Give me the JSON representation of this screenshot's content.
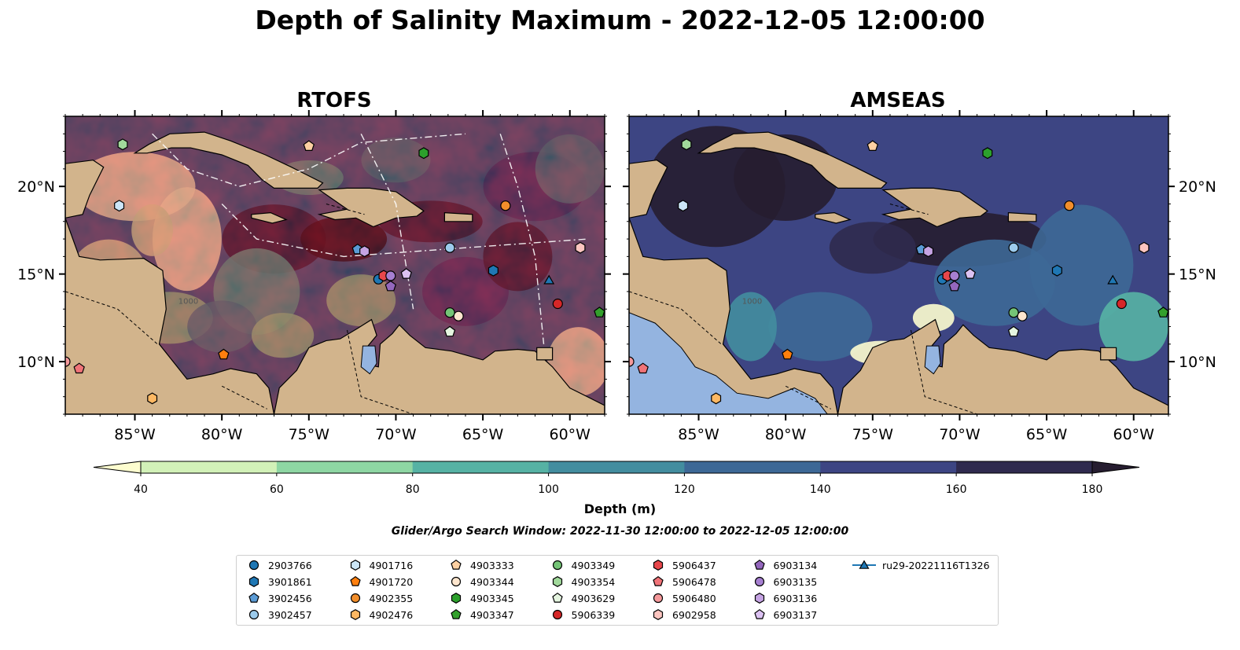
{
  "title": "Depth of Salinity Maximum - 2022-12-05 12:00:00",
  "panels": [
    {
      "title": "RTOFS",
      "model": "rtofs"
    },
    {
      "title": "AMSEAS",
      "model": "amseas"
    }
  ],
  "map": {
    "lon_range": [
      -89,
      -58
    ],
    "lat_range": [
      7,
      24
    ],
    "lon_ticks": [
      -85,
      -80,
      -75,
      -70,
      -65,
      -60
    ],
    "lon_tick_labels": [
      "85°W",
      "80°W",
      "75°W",
      "70°W",
      "65°W",
      "60°W"
    ],
    "lat_ticks": [
      10,
      15,
      20
    ],
    "lat_tick_labels": [
      "10°N",
      "15°N",
      "20°N"
    ],
    "contour_label": "1000",
    "colors": {
      "land": "#d2b48c",
      "ocean_fill": "#94b4e0",
      "coast": "#000000"
    }
  },
  "colorbar": {
    "label": "Depth (m)",
    "ticks": [
      40,
      60,
      80,
      100,
      120,
      140,
      160,
      180
    ],
    "colors": [
      "#fdfdcf",
      "#d2f1b8",
      "#8ed6a3",
      "#56b2a4",
      "#438d9f",
      "#3d6896",
      "#3d4583",
      "#2f2a4e",
      "#261d30"
    ],
    "extend": "both"
  },
  "search_window": "Glider/Argo Search Window: 2022-11-30 12:00:00 to 2022-12-05 12:00:00",
  "legend": [
    {
      "label": "2903766",
      "marker": "circle",
      "color": "#1f77b4"
    },
    {
      "label": "3901861",
      "marker": "hexagon",
      "color": "#1f77b4"
    },
    {
      "label": "3902456",
      "marker": "pentagon",
      "color": "#5b9bd5"
    },
    {
      "label": "3902457",
      "marker": "circle",
      "color": "#9ccbec"
    },
    {
      "label": "4901716",
      "marker": "hexagon",
      "color": "#cce6f7"
    },
    {
      "label": "4901720",
      "marker": "pentagon",
      "color": "#ff7f0e"
    },
    {
      "label": "4902355",
      "marker": "circle",
      "color": "#f28e2b"
    },
    {
      "label": "4902476",
      "marker": "hexagon",
      "color": "#fdb863"
    },
    {
      "label": "4903333",
      "marker": "pentagon",
      "color": "#fdd0a2"
    },
    {
      "label": "4903344",
      "marker": "circle",
      "color": "#fee6ce"
    },
    {
      "label": "4903345",
      "marker": "hexagon",
      "color": "#2ca02c"
    },
    {
      "label": "4903347",
      "marker": "pentagon",
      "color": "#33a02c"
    },
    {
      "label": "4903349",
      "marker": "circle",
      "color": "#74c476"
    },
    {
      "label": "4903354",
      "marker": "hexagon",
      "color": "#a1d99b"
    },
    {
      "label": "4903629",
      "marker": "pentagon",
      "color": "#e5f5e0"
    },
    {
      "label": "5906339",
      "marker": "circle",
      "color": "#d62728"
    },
    {
      "label": "5906437",
      "marker": "hexagon",
      "color": "#e8474b"
    },
    {
      "label": "5906478",
      "marker": "pentagon",
      "color": "#f07378"
    },
    {
      "label": "5906480",
      "marker": "circle",
      "color": "#f5999b"
    },
    {
      "label": "6902958",
      "marker": "hexagon",
      "color": "#fcc5c0"
    },
    {
      "label": "6903134",
      "marker": "pentagon",
      "color": "#9467bd"
    },
    {
      "label": "6903135",
      "marker": "circle",
      "color": "#a67fd1"
    },
    {
      "label": "6903136",
      "marker": "hexagon",
      "color": "#c5a3e3"
    },
    {
      "label": "6903137",
      "marker": "pentagon",
      "color": "#dcc2f2"
    },
    {
      "label": "ru29-20221116T1326",
      "marker": "triangle",
      "color": "#1f77b4",
      "line": true
    }
  ],
  "floats": [
    {
      "id": "2903766",
      "lon": -71.0,
      "lat": 14.7
    },
    {
      "id": "3901861",
      "lon": -64.4,
      "lat": 15.2
    },
    {
      "id": "3902456",
      "lon": -72.2,
      "lat": 16.4
    },
    {
      "id": "3902457",
      "lon": -66.9,
      "lat": 16.5
    },
    {
      "id": "4901716",
      "lon": -85.9,
      "lat": 18.9
    },
    {
      "id": "4901720",
      "lon": -79.9,
      "lat": 10.4
    },
    {
      "id": "4902355",
      "lon": -63.7,
      "lat": 18.9
    },
    {
      "id": "4902476",
      "lon": -84.0,
      "lat": 7.9
    },
    {
      "id": "4903333",
      "lon": -75.0,
      "lat": 22.3
    },
    {
      "id": "4903344",
      "lon": -66.4,
      "lat": 12.6
    },
    {
      "id": "4903345",
      "lon": -68.4,
      "lat": 21.9
    },
    {
      "id": "4903347",
      "lon": -58.3,
      "lat": 12.8
    },
    {
      "id": "4903349",
      "lon": -66.9,
      "lat": 12.8
    },
    {
      "id": "4903354",
      "lon": -85.7,
      "lat": 22.4
    },
    {
      "id": "4903629",
      "lon": -66.9,
      "lat": 11.7
    },
    {
      "id": "5906339",
      "lon": -60.7,
      "lat": 13.3
    },
    {
      "id": "5906437",
      "lon": -70.7,
      "lat": 14.9
    },
    {
      "id": "5906478",
      "lon": -88.2,
      "lat": 9.6
    },
    {
      "id": "5906480",
      "lon": -89.0,
      "lat": 10.0
    },
    {
      "id": "6902958",
      "lon": -59.4,
      "lat": 16.5
    },
    {
      "id": "6903134",
      "lon": -70.3,
      "lat": 14.3
    },
    {
      "id": "6903135",
      "lon": -70.3,
      "lat": 14.9
    },
    {
      "id": "6903136",
      "lon": -71.8,
      "lat": 16.3
    },
    {
      "id": "6903137",
      "lon": -69.4,
      "lat": 15.0
    },
    {
      "id": "ru29-20221116T1326",
      "lon": -61.2,
      "lat": 14.6
    }
  ]
}
